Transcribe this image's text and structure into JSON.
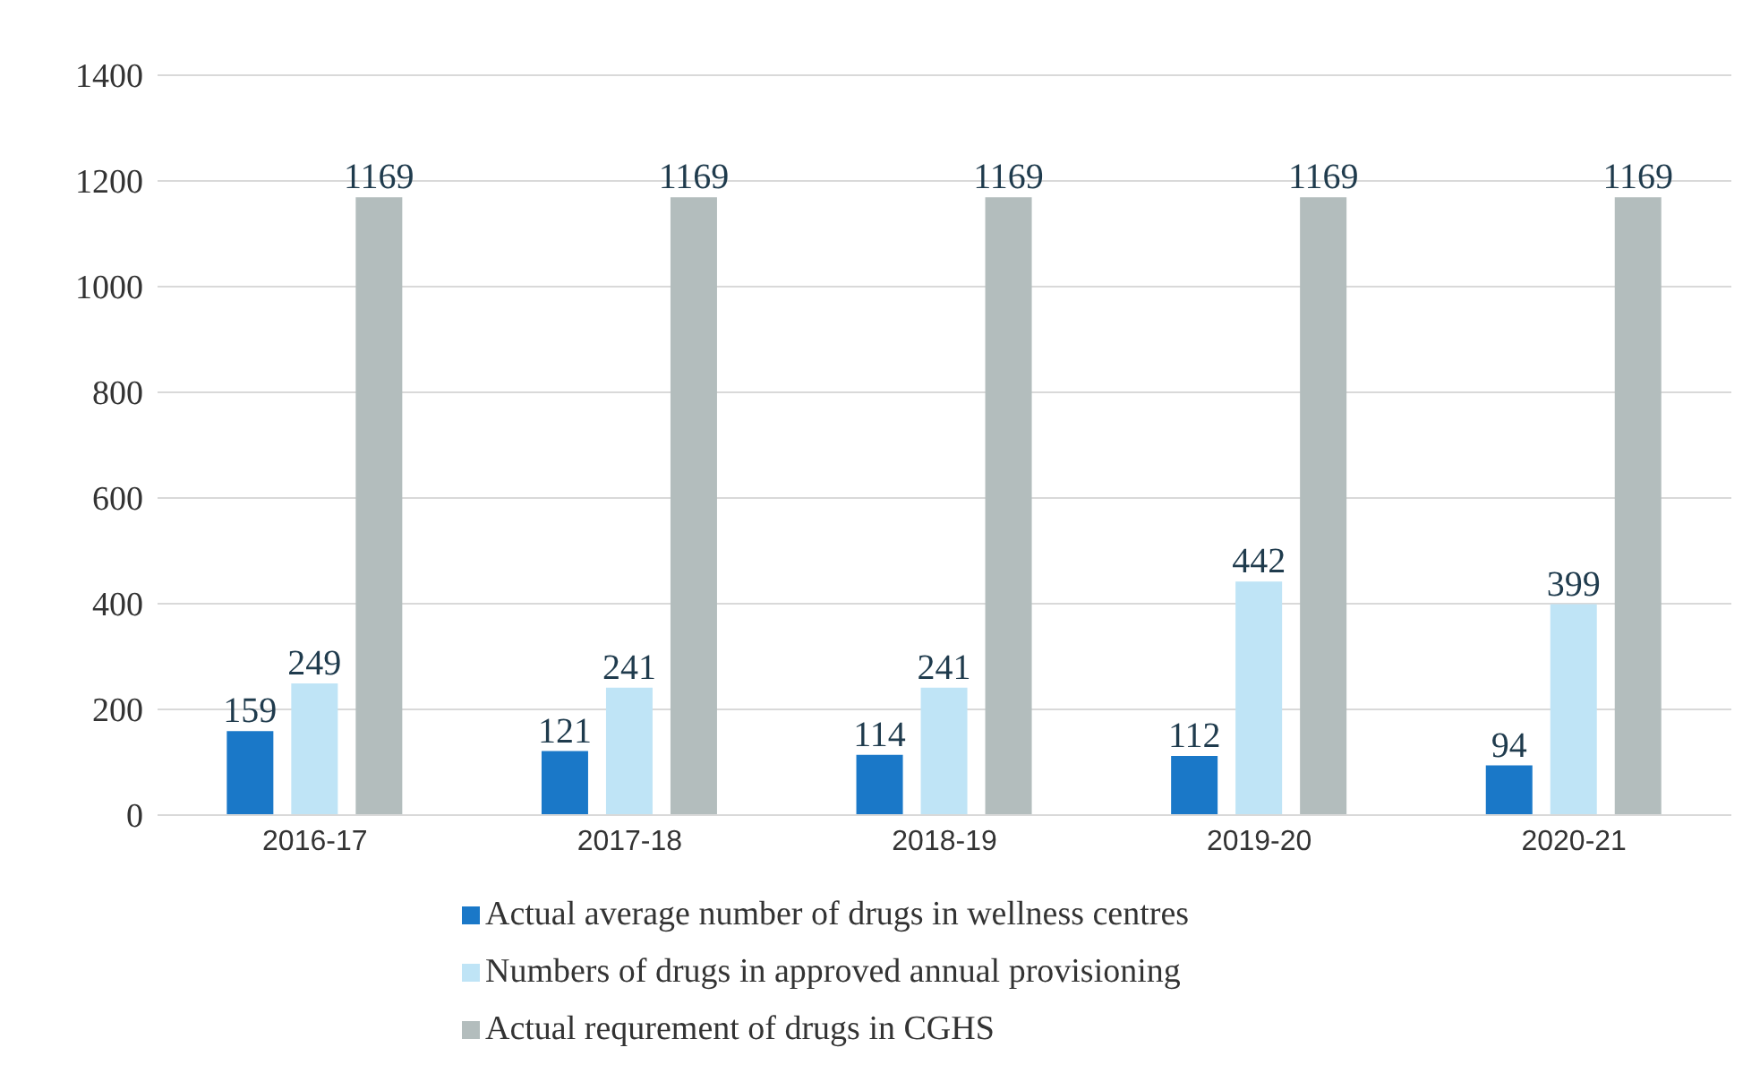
{
  "chart_data": {
    "type": "bar",
    "categories": [
      "2016-17",
      "2017-18",
      "2018-19",
      "2019-20",
      "2020-21"
    ],
    "series": [
      {
        "name": "Actual average number of drugs in wellness centres",
        "color": "#1a78c8",
        "values": [
          159,
          121,
          114,
          112,
          94
        ]
      },
      {
        "name": "Numbers of drugs in approved annual provisioning",
        "color": "#bfe4f6",
        "values": [
          249,
          241,
          241,
          442,
          399
        ]
      },
      {
        "name": "Actual requrement of drugs in CGHS",
        "color": "#b3bdbd",
        "values": [
          1169,
          1169,
          1169,
          1169,
          1169
        ]
      }
    ],
    "ylim": [
      0,
      1400
    ],
    "yticks": [
      0,
      200,
      400,
      600,
      800,
      1000,
      1200,
      1400
    ],
    "grid": "y",
    "legend": "bottom",
    "data_labels": true
  }
}
